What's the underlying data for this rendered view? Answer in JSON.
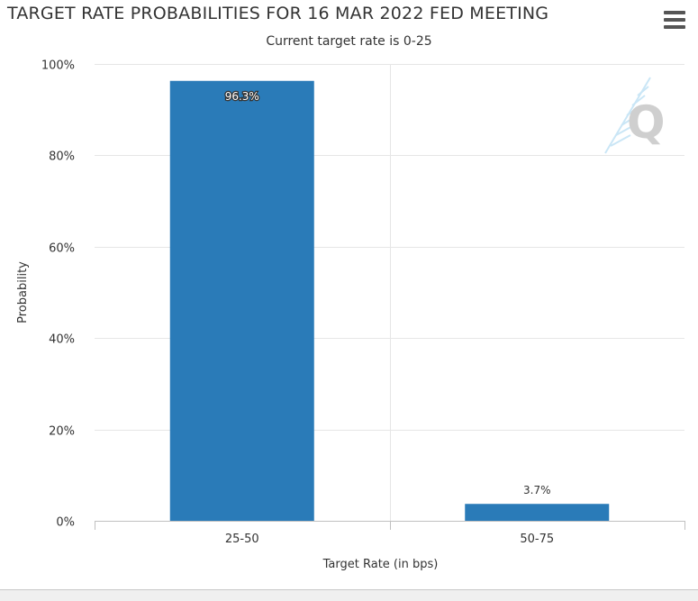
{
  "header": {
    "title": "TARGET RATE PROBABILITIES FOR 16 MAR 2022 FED MEETING",
    "subtitle": "Current target rate is 0-25"
  },
  "menu": {
    "icon": "hamburger-menu-icon"
  },
  "watermark": {
    "icon": "cme-q-logo-icon"
  },
  "colors": {
    "bar": "#2a7bb8",
    "grid": "#e6e6e6",
    "axis": "#ccd6eb"
  },
  "chart_data": {
    "type": "bar",
    "title": "TARGET RATE PROBABILITIES FOR 16 MAR 2022 FED MEETING",
    "subtitle": "Current target rate is 0-25",
    "xlabel": "Target Rate (in bps)",
    "ylabel": "Probability",
    "categories": [
      "25-50",
      "50-75"
    ],
    "values": [
      96.3,
      3.7
    ],
    "data_labels": [
      "96.3%",
      "3.7%"
    ],
    "ylim": [
      0,
      100
    ],
    "yticks": [
      "0%",
      "20%",
      "40%",
      "60%",
      "80%",
      "100%"
    ],
    "ytick_values": [
      0,
      20,
      40,
      60,
      80,
      100
    ],
    "grid": true,
    "legend": "none"
  }
}
